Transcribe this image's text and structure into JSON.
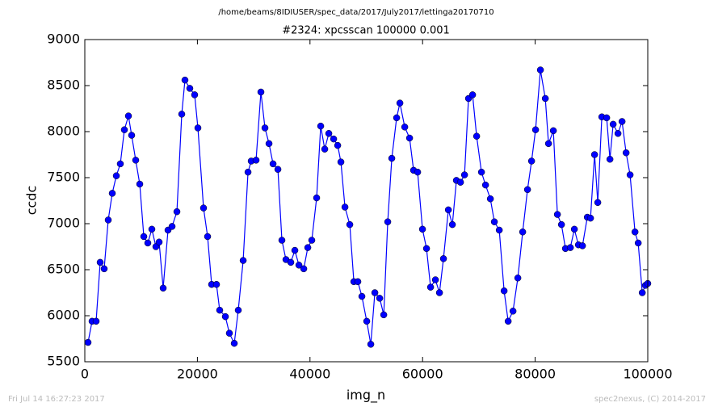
{
  "chart_data": {
    "type": "line",
    "title": "/home/beams/8IDIUSER/spec_data/2017/July2017/lettinga20170710",
    "subtitle": "#2324: xpcsscan 100000 0.001",
    "x_label": "img_n",
    "y_label": "ccdc",
    "annotations": [
      "Fri Jul 14 16:27:23 2017",
      "spec2nexus, (C) 2014-2017"
    ],
    "xlim": [
      0,
      100000
    ],
    "xticks": [
      0,
      20000,
      40000,
      60000,
      80000,
      100000
    ],
    "ylim": [
      5500,
      9000
    ],
    "yticks": [
      5500,
      6000,
      6500,
      7000,
      7500,
      8000,
      8500,
      9000
    ],
    "grid": false,
    "x": [
      574,
      1290,
      2010,
      2730,
      3440,
      4160,
      4880,
      5600,
      6310,
      7030,
      7750,
      8320,
      9040,
      9760,
      10480,
      11190,
      11910,
      12630,
      13200,
      13920,
      14780,
      15500,
      16360,
      17220,
      17790,
      18650,
      19510,
      20090,
      21090,
      21810,
      22530,
      23390,
      23960,
      24970,
      25680,
      26550,
      27260,
      28130,
      28990,
      29560,
      30420,
      31280,
      32000,
      32720,
      33440,
      34300,
      35010,
      35730,
      36590,
      37310,
      38030,
      38890,
      39610,
      40320,
      41180,
      41900,
      42620,
      43340,
      44200,
      44920,
      45490,
      46210,
      47070,
      47790,
      48500,
      49220,
      50080,
      50800,
      51520,
      52380,
      53100,
      53810,
      54530,
      55390,
      55970,
      56830,
      57690,
      58400,
      59120,
      59980,
      60700,
      61420,
      62280,
      63000,
      63710,
      64580,
      65290,
      66010,
      66730,
      67450,
      68160,
      68880,
      69600,
      70460,
      71180,
      72040,
      72750,
      73620,
      74480,
      75200,
      76060,
      76920,
      77780,
      78640,
      79360,
      80070,
      80930,
      81800,
      82370,
      83230,
      83950,
      84670,
      85380,
      86250,
      86960,
      87680,
      88400,
      89260,
      89830,
      90550,
      91120,
      91840,
      92700,
      93280,
      93850,
      94710,
      95430,
      96150,
      96860,
      97730,
      98300,
      99020,
      99590,
      100000
    ],
    "series": [
      {
        "name": "ccdc",
        "color": "#0000ff",
        "values": [
          5710,
          5940,
          5940,
          6580,
          6510,
          7040,
          7330,
          7520,
          7650,
          8020,
          8170,
          7960,
          7690,
          7430,
          6860,
          6790,
          6940,
          6750,
          6800,
          6300,
          6930,
          6970,
          7130,
          8190,
          8560,
          8470,
          8400,
          8040,
          7170,
          6860,
          6340,
          6340,
          6060,
          5990,
          5810,
          5700,
          6060,
          6600,
          7560,
          7680,
          7690,
          8430,
          8040,
          7870,
          7650,
          7590,
          6820,
          6610,
          6580,
          6710,
          6550,
          6510,
          6740,
          6820,
          7280,
          8060,
          7810,
          7980,
          7920,
          7850,
          7670,
          7180,
          6990,
          6370,
          6370,
          6210,
          5940,
          5690,
          6250,
          6190,
          6010,
          7020,
          7710,
          8150,
          8310,
          8050,
          7930,
          7580,
          7560,
          6940,
          6730,
          6310,
          6390,
          6250,
          6620,
          7150,
          6990,
          7470,
          7450,
          7530,
          8360,
          8400,
          7950,
          7560,
          7420,
          7270,
          7020,
          6930,
          6270,
          5940,
          6050,
          6410,
          6910,
          7370,
          7680,
          8020,
          8670,
          8360,
          7870,
          8010,
          7100,
          6990,
          6730,
          6740,
          6940,
          6770,
          6760,
          7070,
          7060,
          7750,
          7230,
          8160,
          8150,
          7700,
          8080,
          7980,
          8110,
          7770,
          7530,
          6910,
          6790,
          6250,
          6330,
          6350
        ]
      }
    ]
  }
}
